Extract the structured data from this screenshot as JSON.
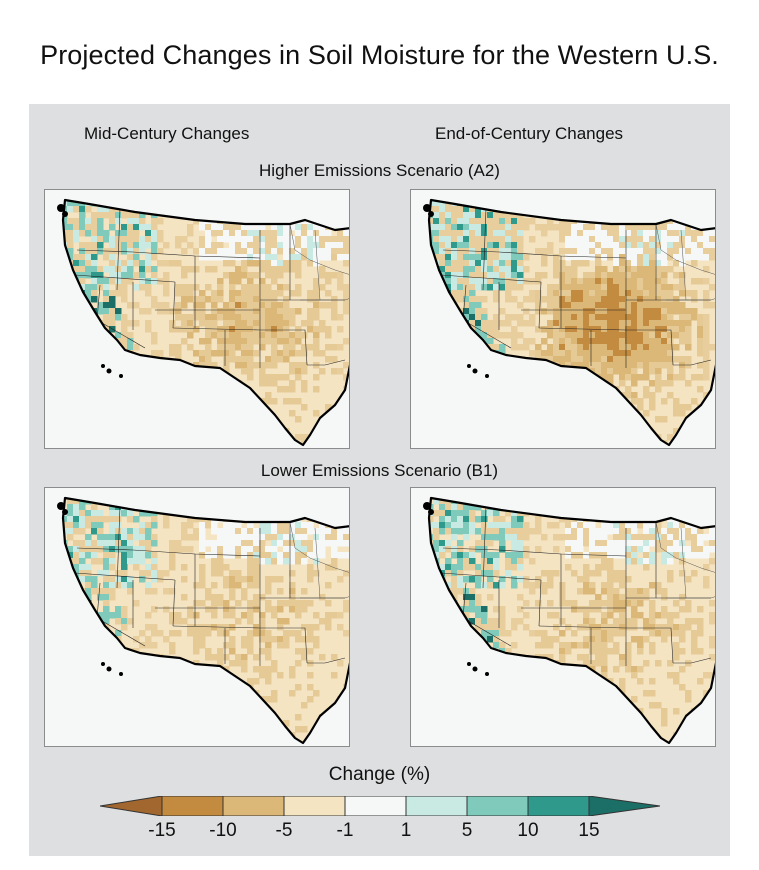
{
  "title": "Projected Changes in Soil Moisture for the Western U.S.",
  "columns": [
    "Mid-Century Changes",
    "End-of-Century Changes"
  ],
  "scenarios": [
    "Higher Emissions Scenario (A2)",
    "Lower Emissions Scenario (B1)"
  ],
  "legend": {
    "title": "Change (%)",
    "tick_labels": [
      "-15",
      "-10",
      "-5",
      "-1",
      "1",
      "5",
      "10",
      "15"
    ],
    "bins": [
      {
        "range": "< -15",
        "color": "#a2672e"
      },
      {
        "range": "-15 to -10",
        "color": "#c38b3f"
      },
      {
        "range": "-10 to -5",
        "color": "#dcb878"
      },
      {
        "range": "-5 to -1",
        "color": "#f5e4c2"
      },
      {
        "range": "-1 to 1",
        "color": "#f6f7f7"
      },
      {
        "range": "1 to 5",
        "color": "#c9e9e3"
      },
      {
        "range": "5 to 10",
        "color": "#7fcabb"
      },
      {
        "range": "10 to 15",
        "color": "#2f9a8c"
      },
      {
        "range": "> 15",
        "color": "#1b6f66"
      }
    ]
  },
  "maps": [
    {
      "scenario": "A2",
      "period": "mid-century",
      "drying_intensity": 0.45,
      "wetting_intensity": 0.6
    },
    {
      "scenario": "A2",
      "period": "end-of-century",
      "drying_intensity": 0.8,
      "wetting_intensity": 0.8
    },
    {
      "scenario": "B1",
      "period": "mid-century",
      "drying_intensity": 0.25,
      "wetting_intensity": 0.55
    },
    {
      "scenario": "B1",
      "period": "end-of-century",
      "drying_intensity": 0.3,
      "wetting_intensity": 0.6
    }
  ]
}
